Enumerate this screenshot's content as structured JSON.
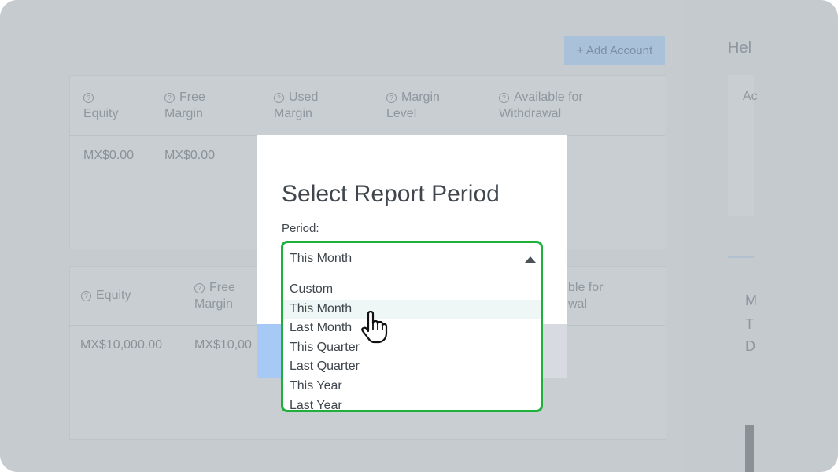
{
  "toolbar": {
    "add_account_label": "+ Add Account"
  },
  "table1": {
    "headers": [
      {
        "l1": "",
        "l2": "Equity"
      },
      {
        "l1": "Free",
        "l2": "Margin"
      },
      {
        "l1": "Used",
        "l2": "Margin"
      },
      {
        "l1": "Margin",
        "l2": "Level"
      },
      {
        "l1": "Available for",
        "l2": "Withdrawal"
      }
    ],
    "values": [
      "MX$0.00",
      "MX$0.00"
    ]
  },
  "table2": {
    "headers": [
      {
        "l1": "Equity"
      },
      {
        "l1": "Free",
        "l2": "Margin"
      },
      {
        "l1": "ble for",
        "l2": "wal"
      }
    ],
    "values": [
      "MX$10,000.00",
      "MX$10,00"
    ]
  },
  "right_panel": {
    "title": "Hel",
    "item": "Ac",
    "lines": [
      "M",
      "T",
      "D"
    ]
  },
  "modal": {
    "title": "Select Report Period",
    "period_label": "Period:",
    "selected": "This Month",
    "options": [
      "Custom",
      "This Month",
      "Last Month",
      "This Quarter",
      "Last Quarter",
      "This Year",
      "Last Year"
    ],
    "highlighted": "This Month"
  },
  "colors": {
    "highlight_border": "#1fb03c",
    "overlay": "#c5cacf",
    "primary_button": "#a6c9f6"
  },
  "icons": {
    "cursor": "hand-pointer-icon",
    "select_caret": "caret-up-icon",
    "help": "question-circle-icon"
  }
}
